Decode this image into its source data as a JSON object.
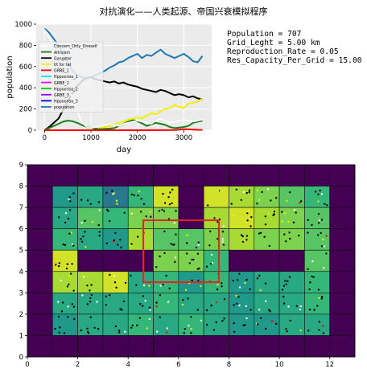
{
  "title": "对抗演化——人类起源、帝国兴衰模拟程序",
  "stats": {
    "population": "Population = 707",
    "grid_length": "Grid_Leght = 5.00 km",
    "reproduction_rate": "Reproduction_Rate = 0.05",
    "res_capacity": "Res_Capacity_Per_Grid = 15.00"
  },
  "chart_data": [
    {
      "type": "line",
      "xlabel": "day",
      "ylabel": "population",
      "xlim": [
        -180,
        3600
      ],
      "ylim": [
        0,
        1000
      ],
      "xticks": [
        0,
        1000,
        2000,
        3000
      ],
      "yticks": [
        0,
        200,
        400,
        600,
        800,
        1000
      ],
      "legend_position": "upper-left",
      "legend": [
        {
          "name": "Concern_Only_Oneself",
          "color": "#ffffff"
        },
        {
          "name": "Altruism",
          "color": "#1a7f1a"
        },
        {
          "name": "Gangster",
          "color": "#000000"
        },
        {
          "name": "tit for tat",
          "color": "#f0f000"
        },
        {
          "name": "GRBE_1",
          "color": "#ff0000"
        },
        {
          "name": "Hppooriso_1",
          "color": "#00e5ee"
        },
        {
          "name": "GRBE_2",
          "color": "#ff00ff"
        },
        {
          "name": "Hppooriso_2",
          "color": "#00cc00"
        },
        {
          "name": "GRBE_3",
          "color": "#a000ff"
        },
        {
          "name": "Hppooriso_3",
          "color": "#0000ff"
        },
        {
          "name": "population",
          "color": "#1f77b4"
        }
      ],
      "series": [
        {
          "name": "population",
          "color": "#1f77b4",
          "x": [
            0,
            100,
            200,
            300,
            400,
            500,
            600,
            700,
            800,
            900,
            1000,
            1100,
            1200,
            1300,
            1400,
            1500,
            1600,
            1700,
            1800,
            1900,
            2000,
            2100,
            2200,
            2300,
            2400,
            2500,
            2600,
            2700,
            2800,
            2900,
            3000,
            3100,
            3200,
            3300,
            3400
          ],
          "y": [
            960,
            920,
            860,
            800,
            720,
            640,
            560,
            520,
            500,
            490,
            500,
            520,
            540,
            560,
            590,
            610,
            640,
            650,
            680,
            700,
            720,
            680,
            710,
            700,
            730,
            760,
            720,
            700,
            680,
            700,
            720,
            690,
            650,
            640,
            700
          ]
        },
        {
          "name": "Gangster",
          "color": "#000000",
          "x": [
            0,
            100,
            200,
            300,
            400,
            500,
            600,
            700,
            800,
            900,
            1000,
            1100,
            1200,
            1300,
            1400,
            1500,
            1600,
            1700,
            1800,
            1900,
            2000,
            2100,
            2200,
            2300,
            2400,
            2500,
            2600,
            2700,
            2800,
            2900,
            3000,
            3100,
            3200,
            3300,
            3400
          ],
          "y": [
            0,
            30,
            70,
            110,
            190,
            270,
            350,
            420,
            460,
            490,
            500,
            480,
            470,
            460,
            450,
            460,
            440,
            450,
            430,
            420,
            410,
            390,
            380,
            370,
            360,
            380,
            370,
            350,
            330,
            340,
            330,
            310,
            320,
            300,
            290
          ]
        },
        {
          "name": "tit for tat",
          "color": "#f0f000",
          "x": [
            0,
            200,
            400,
            600,
            800,
            1000,
            1100,
            1200,
            1300,
            1400,
            1500,
            1600,
            1700,
            1800,
            1900,
            2000,
            2100,
            2200,
            2300,
            2400,
            2500,
            2600,
            2700,
            2800,
            2900,
            3000,
            3100,
            3200,
            3300,
            3400
          ],
          "y": [
            0,
            0,
            0,
            0,
            0,
            0,
            5,
            20,
            30,
            40,
            55,
            70,
            80,
            100,
            110,
            120,
            110,
            140,
            160,
            150,
            180,
            200,
            210,
            240,
            220,
            210,
            250,
            260,
            270,
            300
          ]
        },
        {
          "name": "Altruism",
          "color": "#1a7f1a",
          "x": [
            0,
            100,
            200,
            300,
            400,
            500,
            600,
            700,
            800,
            900,
            1000,
            1200,
            1400,
            1500,
            1600,
            1700,
            1800,
            1900,
            2000,
            2100,
            2200,
            2300,
            2400,
            2500,
            2600,
            2700,
            2800,
            2900,
            3000,
            3100,
            3200,
            3300,
            3400
          ],
          "y": [
            5,
            20,
            40,
            60,
            80,
            90,
            85,
            70,
            50,
            30,
            20,
            10,
            15,
            20,
            40,
            60,
            80,
            95,
            85,
            65,
            40,
            55,
            70,
            60,
            50,
            30,
            20,
            25,
            30,
            40,
            70,
            80,
            90
          ]
        },
        {
          "name": "Concern_Only_Oneself",
          "color": "#ffffff",
          "x": [
            0,
            100,
            200,
            300,
            400,
            500,
            600,
            700,
            800,
            900,
            1000,
            1100,
            1200,
            1300,
            1400,
            1500,
            1600,
            1700,
            1800,
            1900,
            2000,
            2100,
            2200,
            2300,
            2400,
            2500,
            2600,
            2700,
            2800,
            2900,
            3000,
            3100,
            3200,
            3300,
            3400
          ],
          "y": [
            950,
            880,
            780,
            680,
            560,
            420,
            300,
            180,
            80,
            30,
            20,
            30,
            40,
            50,
            60,
            50,
            40,
            60,
            70,
            80,
            90,
            80,
            70,
            60,
            90,
            110,
            90,
            70,
            80,
            90,
            100,
            90,
            80,
            90,
            100
          ]
        },
        {
          "name": "GRBE_1",
          "color": "#ff0000",
          "x": [
            0,
            1000,
            2000,
            2800,
            2900,
            3000,
            3100,
            3200,
            3300,
            3400
          ],
          "y": [
            0,
            0,
            0,
            2,
            6,
            10,
            8,
            6,
            4,
            3
          ]
        }
      ]
    },
    {
      "type": "heatmap",
      "xlim": [
        0,
        13
      ],
      "ylim": [
        0,
        9
      ],
      "xticks": [
        0,
        2,
        4,
        6,
        8,
        10,
        12
      ],
      "yticks": [
        0,
        1,
        2,
        3,
        4,
        5,
        6,
        7,
        8,
        9
      ],
      "colormap": "viridis",
      "vmin": 0,
      "vmax": 15,
      "rows_top_to_bottom": [
        [
          0,
          0,
          0,
          0,
          0,
          0,
          0,
          0,
          0,
          0,
          0,
          0,
          0
        ],
        [
          0,
          8,
          9,
          6,
          10,
          14,
          0,
          14,
          13,
          12,
          11,
          10,
          0
        ],
        [
          0,
          9,
          11,
          10,
          12,
          12,
          0,
          13,
          14,
          13,
          12,
          11,
          0
        ],
        [
          0,
          10,
          9,
          8,
          13,
          11,
          11,
          12,
          13,
          12,
          12,
          11,
          0
        ],
        [
          0,
          14,
          0,
          0,
          0,
          12,
          12,
          10,
          0,
          0,
          0,
          11,
          0
        ],
        [
          0,
          13,
          13,
          14,
          9,
          10,
          8,
          10,
          8,
          9,
          9,
          10,
          0
        ],
        [
          0,
          9,
          9,
          9,
          9,
          10,
          9,
          9,
          8,
          9,
          9,
          10,
          0
        ],
        [
          0,
          8,
          9,
          9,
          10,
          9,
          10,
          9,
          8,
          8,
          9,
          9,
          0
        ],
        [
          0,
          0,
          0,
          0,
          0,
          0,
          0,
          0,
          0,
          0,
          0,
          0,
          0
        ]
      ],
      "highlight_rect": {
        "x": [
          4.6,
          7.6
        ],
        "y": [
          3.5,
          6.4
        ],
        "color": "#e8231f"
      },
      "agent_colors": [
        "#000000",
        "#ffffff",
        "#f0f000",
        "#ff0000"
      ]
    }
  ]
}
